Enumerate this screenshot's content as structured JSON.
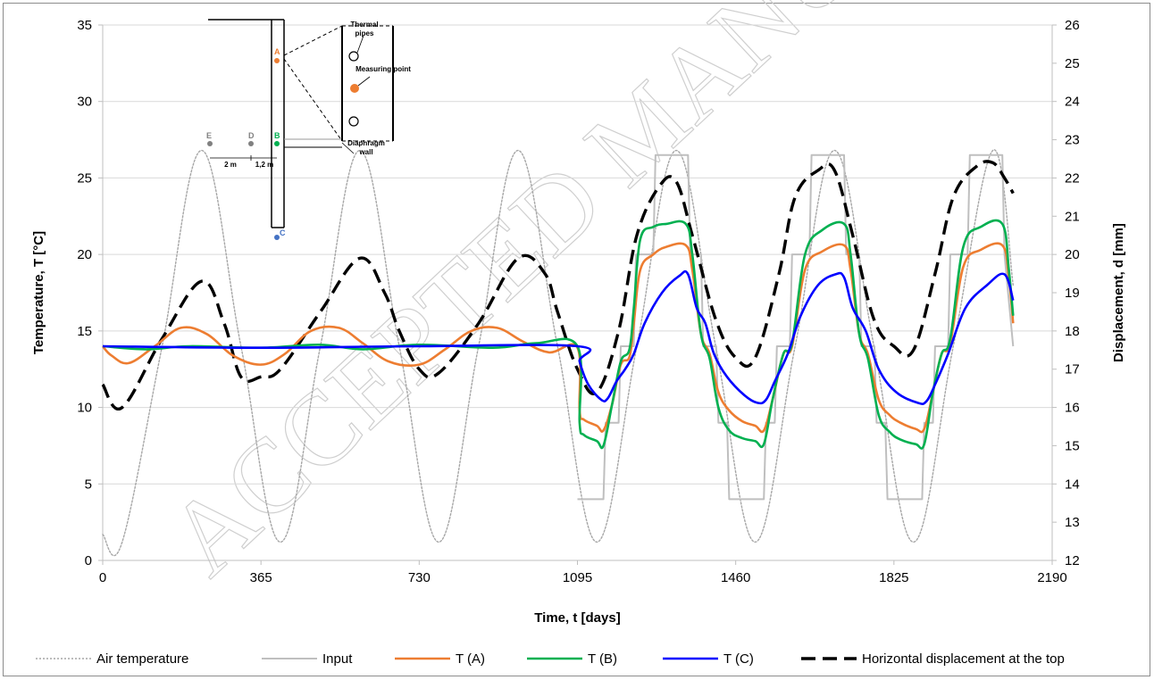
{
  "chart_data": {
    "type": "line",
    "title": "",
    "xlabel": "Time, t [days]",
    "ylabel_left": "Temperature, T [°C]",
    "ylabel_right": "Displacement, d [mm]",
    "xlim": [
      0,
      2190
    ],
    "ylim_left": [
      0,
      35
    ],
    "ylim_right": [
      12,
      26
    ],
    "x_ticks": [
      0,
      365,
      730,
      1095,
      1460,
      1825,
      2190
    ],
    "y_left_ticks": [
      0,
      5,
      10,
      15,
      20,
      25,
      30,
      35
    ],
    "y_right_ticks": [
      12,
      13,
      14,
      15,
      16,
      17,
      18,
      19,
      20,
      21,
      22,
      23,
      24,
      25,
      26
    ],
    "grid": "horizontal",
    "legend_position": "bottom",
    "series": [
      {
        "name": "Air temperature",
        "axis": "left",
        "color": "#a6a6a6",
        "style": "dotted",
        "x": [
          0,
          45,
          137,
          228,
          319,
          410,
          502,
          593,
          684,
          775,
          867,
          958,
          1049,
          1140,
          1232,
          1323,
          1414,
          1505,
          1597,
          1688,
          1779,
          1870,
          1962,
          2053,
          2100
        ],
        "y": [
          1.7,
          1.2,
          14.0,
          26.8,
          14.0,
          1.2,
          14.0,
          26.8,
          14.0,
          1.2,
          14.0,
          26.8,
          14.0,
          1.2,
          14.0,
          26.8,
          14.0,
          1.2,
          14.0,
          26.8,
          14.0,
          1.2,
          14.0,
          26.8,
          18.0
        ]
      },
      {
        "name": "Input",
        "axis": "left",
        "color": "#bfbfbf",
        "style": "solid",
        "x": [
          1095,
          1155,
          1160,
          1190,
          1195,
          1225,
          1230,
          1270,
          1275,
          1350,
          1355,
          1380,
          1385,
          1415,
          1420,
          1440,
          1445,
          1525,
          1530,
          1550,
          1555,
          1585,
          1590,
          1630,
          1635,
          1710,
          1715,
          1745,
          1750,
          1780,
          1785,
          1805,
          1810,
          1890,
          1895,
          1915,
          1920,
          1950,
          1955,
          1995,
          2000,
          2075,
          2080,
          2100
        ],
        "y": [
          4.0,
          4.0,
          9.0,
          9.0,
          14.0,
          14.0,
          20.0,
          20.0,
          26.5,
          26.5,
          20.0,
          20.0,
          14.0,
          14.0,
          9.0,
          9.0,
          4.0,
          4.0,
          9.0,
          9.0,
          14.0,
          14.0,
          20.0,
          20.0,
          26.5,
          26.5,
          20.0,
          20.0,
          14.0,
          14.0,
          9.0,
          9.0,
          4.0,
          4.0,
          9.0,
          9.0,
          14.0,
          14.0,
          20.0,
          20.0,
          26.5,
          26.5,
          20.0,
          14.0
        ]
      },
      {
        "name": "T (A)",
        "axis": "left",
        "color": "#ed7d31",
        "style": "solid",
        "x": [
          0,
          20,
          60,
          120,
          180,
          240,
          300,
          365,
          420,
          480,
          545,
          600,
          660,
          730,
          790,
          850,
          910,
          970,
          1030,
          1095,
          1100,
          1110,
          1140,
          1155,
          1175,
          1195,
          1215,
          1225,
          1240,
          1270,
          1300,
          1345,
          1360,
          1380,
          1400,
          1420,
          1445,
          1475,
          1505,
          1525,
          1545,
          1570,
          1590,
          1620,
          1660,
          1710,
          1725,
          1745,
          1765,
          1790,
          1815,
          1840,
          1875,
          1895,
          1915,
          1935,
          1955,
          1985,
          2025,
          2075,
          2090,
          2100
        ],
        "y": [
          14.0,
          13.4,
          12.9,
          14.0,
          15.2,
          14.8,
          13.4,
          12.8,
          13.5,
          15.0,
          15.2,
          14.2,
          13.0,
          12.8,
          13.8,
          15.0,
          15.2,
          14.3,
          13.6,
          13.9,
          9.8,
          9.2,
          8.8,
          8.5,
          10.2,
          12.8,
          13.3,
          15.5,
          19.0,
          20.0,
          20.5,
          20.6,
          19.0,
          14.8,
          13.5,
          11.0,
          9.8,
          9.1,
          8.8,
          8.5,
          10.5,
          13.5,
          14.0,
          19.0,
          20.2,
          20.6,
          19.0,
          14.8,
          13.5,
          10.5,
          9.5,
          9.0,
          8.6,
          8.6,
          11.0,
          13.5,
          14.2,
          19.2,
          20.3,
          20.6,
          18.5,
          15.5
        ]
      },
      {
        "name": "T (B)",
        "axis": "left",
        "color": "#00b050",
        "style": "solid",
        "x": [
          0,
          100,
          200,
          365,
          500,
          600,
          730,
          900,
          1000,
          1095,
          1100,
          1110,
          1140,
          1155,
          1175,
          1195,
          1215,
          1225,
          1240,
          1270,
          1300,
          1345,
          1360,
          1380,
          1400,
          1420,
          1445,
          1475,
          1505,
          1525,
          1545,
          1570,
          1590,
          1620,
          1660,
          1710,
          1725,
          1745,
          1765,
          1790,
          1815,
          1840,
          1875,
          1895,
          1915,
          1935,
          1955,
          1985,
          2025,
          2075,
          2090,
          2100
        ],
        "y": [
          14.0,
          13.8,
          14.0,
          13.9,
          14.1,
          13.8,
          14.1,
          13.9,
          14.2,
          14.0,
          9.0,
          8.2,
          7.8,
          7.5,
          10.2,
          13.0,
          13.8,
          16.5,
          21.0,
          21.8,
          22.0,
          22.0,
          20.0,
          14.8,
          13.2,
          10.0,
          8.5,
          8.0,
          7.8,
          7.6,
          10.5,
          13.5,
          14.2,
          20.0,
          21.6,
          22.0,
          20.0,
          14.8,
          13.2,
          9.5,
          8.4,
          7.9,
          7.6,
          7.6,
          11.0,
          13.5,
          14.5,
          20.5,
          21.8,
          22.0,
          19.0,
          16.0
        ]
      },
      {
        "name": "T (C)",
        "axis": "left",
        "color": "#0000ff",
        "style": "solid",
        "x": [
          0,
          365,
          730,
          1095,
          1100,
          1120,
          1150,
          1165,
          1185,
          1205,
          1225,
          1250,
          1290,
          1330,
          1350,
          1370,
          1390,
          1410,
          1440,
          1480,
          1510,
          1530,
          1550,
          1580,
          1610,
          1650,
          1690,
          1710,
          1730,
          1760,
          1790,
          1830,
          1880,
          1900,
          1920,
          1950,
          1990,
          2040,
          2080,
          2100
        ],
        "y": [
          14.0,
          13.9,
          14.0,
          14.0,
          13.0,
          11.5,
          10.5,
          10.6,
          11.7,
          12.5,
          13.5,
          15.5,
          17.5,
          18.6,
          18.7,
          16.5,
          15.5,
          13.5,
          12.0,
          10.8,
          10.3,
          10.5,
          11.7,
          13.5,
          16.0,
          18.0,
          18.7,
          18.5,
          16.5,
          15.0,
          12.5,
          11.0,
          10.3,
          10.4,
          11.5,
          13.5,
          16.5,
          18.0,
          18.7,
          17.0
        ]
      },
      {
        "name": "Horizontal displacement at the top",
        "axis": "right",
        "color": "#000000",
        "style": "dashed",
        "x": [
          0,
          45,
          137,
          228,
          280,
          319,
          365,
          410,
          502,
          593,
          650,
          684,
          730,
          775,
          867,
          958,
          1020,
          1049,
          1095,
          1140,
          1190,
          1232,
          1285,
          1323,
          1360,
          1414,
          1460,
          1505,
          1560,
          1597,
          1650,
          1688,
          1730,
          1779,
          1825,
          1870,
          1920,
          1962,
          2015,
          2053,
          2080,
          2100
        ],
        "y": [
          16.6,
          16.0,
          17.8,
          19.3,
          18.2,
          16.8,
          16.8,
          17.0,
          18.5,
          19.9,
          19.0,
          18.0,
          17.0,
          16.9,
          18.2,
          19.9,
          19.5,
          18.5,
          17.0,
          16.4,
          18.0,
          20.5,
          21.8,
          21.9,
          20.5,
          18.3,
          17.3,
          17.3,
          19.5,
          21.5,
          22.2,
          22.2,
          20.5,
          18.3,
          17.6,
          17.5,
          19.5,
          21.5,
          22.3,
          22.4,
          22.0,
          21.6
        ]
      }
    ]
  },
  "inset": {
    "thermal_pipes": "Thermal pipes",
    "measuring_point": "Measuring point",
    "diaphragm_wall": "Diaphragm wall",
    "points": [
      "A",
      "B",
      "C",
      "D",
      "E"
    ],
    "dim_2m": "2 m",
    "dim_12m": "1,2 m"
  },
  "watermark": "ACCEPTED MANUSCRIPT"
}
